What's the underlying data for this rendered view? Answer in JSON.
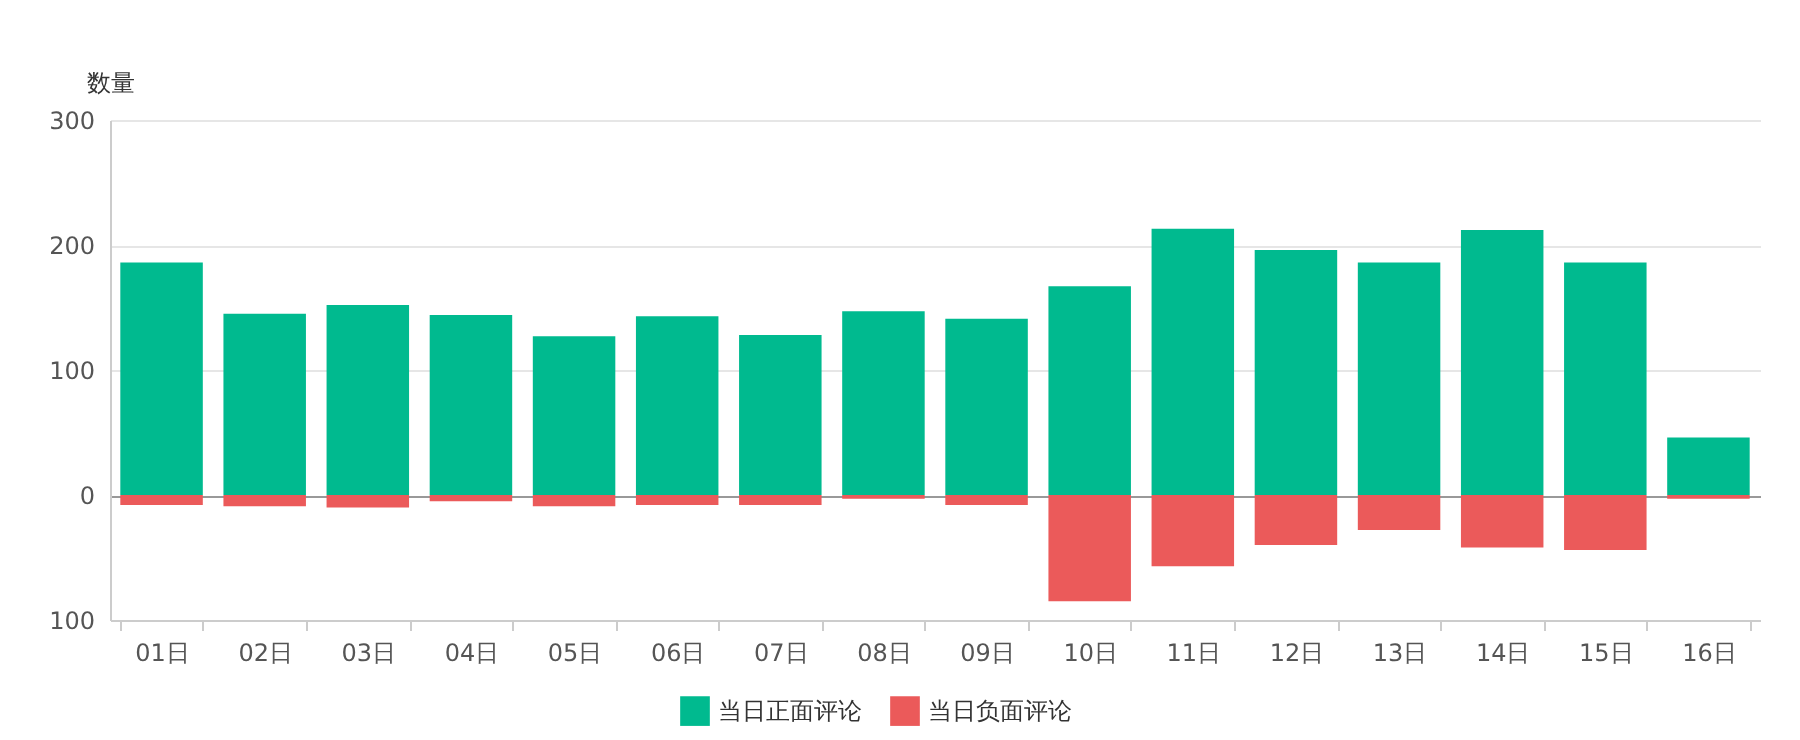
{
  "chart_data": {
    "type": "bar",
    "ylabel": "数量",
    "categories": [
      "01日",
      "02日",
      "03日",
      "04日",
      "05日",
      "06日",
      "07日",
      "08日",
      "09日",
      "10日",
      "11日",
      "12日",
      "13日",
      "14日",
      "15日",
      "16日"
    ],
    "series": [
      {
        "name": "当日正面评论",
        "color": "#00ba8f",
        "values": [
          186,
          145,
          152,
          144,
          127,
          143,
          128,
          147,
          141,
          167,
          213,
          196,
          186,
          212,
          186,
          46
        ]
      },
      {
        "name": "当日负面评论",
        "color": "#eb5a5a",
        "values": [
          -8,
          -9,
          -10,
          -5,
          -9,
          -8,
          -8,
          -3,
          -8,
          -85,
          -57,
          -40,
          -28,
          -42,
          -44,
          -3
        ]
      }
    ],
    "stacked": true,
    "ylim": [
      -100,
      300
    ],
    "yticks": [
      {
        "value": -100,
        "label": "100"
      },
      0,
      100,
      200,
      300
    ],
    "grid": "y",
    "legend": "bottom"
  }
}
